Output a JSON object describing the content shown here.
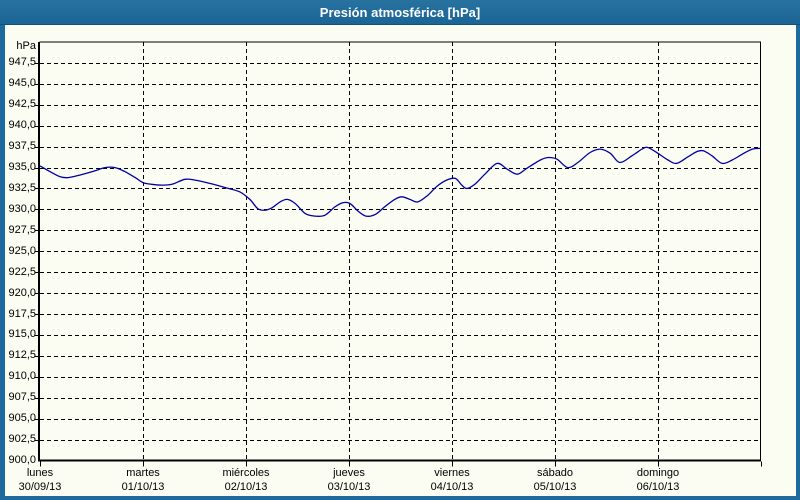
{
  "window": {
    "title": "Presión atmosférica [hPa]"
  },
  "colors": {
    "frame_blue": "#1e6a9c",
    "title_text": "#ffffff",
    "content_bg": "#fbfdf3",
    "grid": "#000000",
    "text": "#000000",
    "line": "#0000a2"
  },
  "chart_data": {
    "type": "line",
    "title": "Presión atmosférica [hPa]",
    "ylabel": "hPa",
    "ylim": [
      900,
      950
    ],
    "ytick_step": 2.5,
    "ytick_top_label": 947.5,
    "grid": "dashed",
    "legend_position": "none",
    "x_days": [
      {
        "name": "lunes",
        "date": "30/09/13"
      },
      {
        "name": "martes",
        "date": "01/10/13"
      },
      {
        "name": "miércoles",
        "date": "02/10/13"
      },
      {
        "name": "jueves",
        "date": "03/10/13"
      },
      {
        "name": "viernes",
        "date": "04/10/13"
      },
      {
        "name": "sábado",
        "date": "05/10/13"
      },
      {
        "name": "domingo",
        "date": "06/10/13"
      }
    ],
    "series": [
      {
        "name": "Presión atmosférica",
        "unit": "hPa",
        "color": "#0000a2",
        "points": [
          [
            0.0,
            935.2
          ],
          [
            0.014,
            934.5
          ],
          [
            0.028,
            933.9
          ],
          [
            0.039,
            933.8
          ],
          [
            0.055,
            934.1
          ],
          [
            0.076,
            934.6
          ],
          [
            0.09,
            935.0
          ],
          [
            0.104,
            935.0
          ],
          [
            0.118,
            934.5
          ],
          [
            0.132,
            933.8
          ],
          [
            0.143,
            933.2
          ],
          [
            0.155,
            933.0
          ],
          [
            0.169,
            932.9
          ],
          [
            0.183,
            933.0
          ],
          [
            0.201,
            933.6
          ],
          [
            0.215,
            933.5
          ],
          [
            0.236,
            933.1
          ],
          [
            0.257,
            932.6
          ],
          [
            0.277,
            932.1
          ],
          [
            0.291,
            931.2
          ],
          [
            0.302,
            930.1
          ],
          [
            0.312,
            929.9
          ],
          [
            0.322,
            930.2
          ],
          [
            0.333,
            930.9
          ],
          [
            0.343,
            931.2
          ],
          [
            0.354,
            930.7
          ],
          [
            0.368,
            929.5
          ],
          [
            0.381,
            929.2
          ],
          [
            0.395,
            929.3
          ],
          [
            0.409,
            930.3
          ],
          [
            0.42,
            930.8
          ],
          [
            0.43,
            930.7
          ],
          [
            0.441,
            929.8
          ],
          [
            0.452,
            929.2
          ],
          [
            0.465,
            929.4
          ],
          [
            0.478,
            930.3
          ],
          [
            0.492,
            931.2
          ],
          [
            0.502,
            931.5
          ],
          [
            0.513,
            931.2
          ],
          [
            0.524,
            930.9
          ],
          [
            0.538,
            931.7
          ],
          [
            0.551,
            932.8
          ],
          [
            0.564,
            933.5
          ],
          [
            0.576,
            933.7
          ],
          [
            0.585,
            932.9
          ],
          [
            0.592,
            932.5
          ],
          [
            0.603,
            933.0
          ],
          [
            0.617,
            934.2
          ],
          [
            0.634,
            935.5
          ],
          [
            0.648,
            934.8
          ],
          [
            0.662,
            934.2
          ],
          [
            0.675,
            934.9
          ],
          [
            0.694,
            935.9
          ],
          [
            0.705,
            936.2
          ],
          [
            0.717,
            936.0
          ],
          [
            0.732,
            935.0
          ],
          [
            0.746,
            935.6
          ],
          [
            0.763,
            936.8
          ],
          [
            0.777,
            937.2
          ],
          [
            0.791,
            936.7
          ],
          [
            0.804,
            935.6
          ],
          [
            0.821,
            936.4
          ],
          [
            0.835,
            937.2
          ],
          [
            0.843,
            937.4
          ],
          [
            0.857,
            936.7
          ],
          [
            0.871,
            935.9
          ],
          [
            0.883,
            935.5
          ],
          [
            0.899,
            936.3
          ],
          [
            0.911,
            936.9
          ],
          [
            0.92,
            937.0
          ],
          [
            0.932,
            936.4
          ],
          [
            0.946,
            935.5
          ],
          [
            0.96,
            935.9
          ],
          [
            0.974,
            936.6
          ],
          [
            0.988,
            937.2
          ],
          [
            1.0,
            937.3
          ]
        ]
      }
    ]
  }
}
